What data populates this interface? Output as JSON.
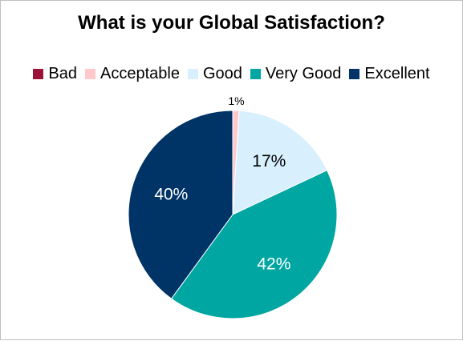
{
  "chart_data": {
    "type": "pie",
    "title": "What is your Global Satisfaction?",
    "legend_position": "top",
    "slices": [
      {
        "label": "Bad",
        "value": 0,
        "display": "",
        "color": "#9b1238",
        "label_color": "#000000"
      },
      {
        "label": "Acceptable",
        "value": 1,
        "display": "1%",
        "color": "#ffc9cc",
        "label_color": "#000000"
      },
      {
        "label": "Good",
        "value": 17,
        "display": "17%",
        "color": "#d8effd",
        "label_color": "#000000"
      },
      {
        "label": "Very Good",
        "value": 42,
        "display": "42%",
        "color": "#00a6a2",
        "label_color": "#ffffff"
      },
      {
        "label": "Excellent",
        "value": 40,
        "display": "40%",
        "color": "#003366",
        "label_color": "#ffffff"
      }
    ]
  }
}
